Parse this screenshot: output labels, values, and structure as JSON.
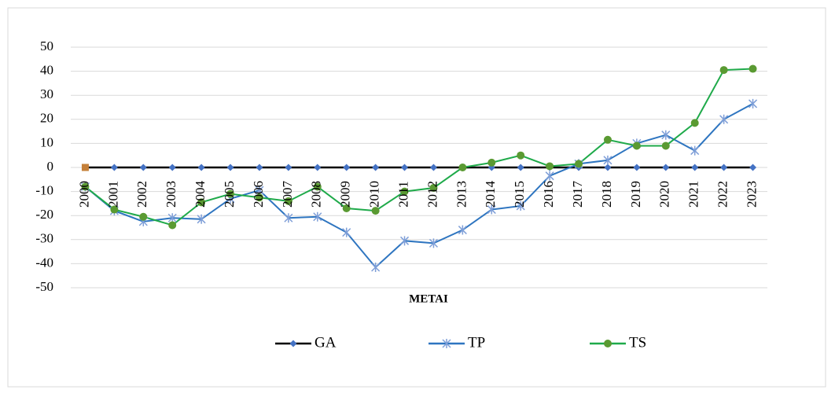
{
  "chart_data": {
    "type": "line",
    "x_label": "METAI",
    "categories": [
      "2000",
      "2001",
      "2002",
      "2003",
      "2004",
      "2005",
      "2006",
      "2007",
      "2008",
      "2009",
      "2010",
      "2011",
      "2012",
      "2013",
      "2014",
      "2015",
      "2016",
      "2017",
      "2018",
      "2019",
      "2020",
      "2021",
      "2022",
      "2023"
    ],
    "series": [
      {
        "name": "GA",
        "color": "#000000",
        "marker": "diamond",
        "marker_color": "#4472c4",
        "first_point_color": "#c5803a",
        "values": [
          0,
          0,
          0,
          0,
          0,
          0,
          0,
          0,
          0,
          0,
          0,
          0,
          0,
          0,
          0,
          0,
          0,
          0,
          0,
          0,
          0,
          0,
          0,
          0
        ]
      },
      {
        "name": "TP",
        "color": "#2e75c0",
        "marker": "star",
        "marker_color": "#7f9fd8",
        "values": [
          -8,
          -18,
          -22.5,
          -21,
          -21.5,
          -13,
          -9.5,
          -21,
          -20.5,
          -27,
          -41.5,
          -30.5,
          -31.5,
          -26,
          -17.5,
          -16,
          -3.5,
          1.5,
          3,
          10,
          13.5,
          7,
          20,
          26.5
        ]
      },
      {
        "name": "TS",
        "color": "#1faa4a",
        "marker": "circle",
        "marker_color": "#5a9a32",
        "values": [
          -8,
          -17.5,
          -20.5,
          -24,
          -14.5,
          -11,
          -12.5,
          -14,
          -8,
          -17,
          -18,
          -10,
          -8.5,
          0,
          2,
          5,
          0.5,
          1.5,
          11.5,
          9,
          9,
          18.5,
          40.5,
          41
        ]
      }
    ],
    "ylim": [
      -50,
      50
    ],
    "yticks": [
      -50,
      -40,
      -30,
      -20,
      -10,
      0,
      10,
      20,
      30,
      40,
      50
    ],
    "negative_tick_color": "#ff0000",
    "grid": true,
    "legend": "bottom"
  }
}
